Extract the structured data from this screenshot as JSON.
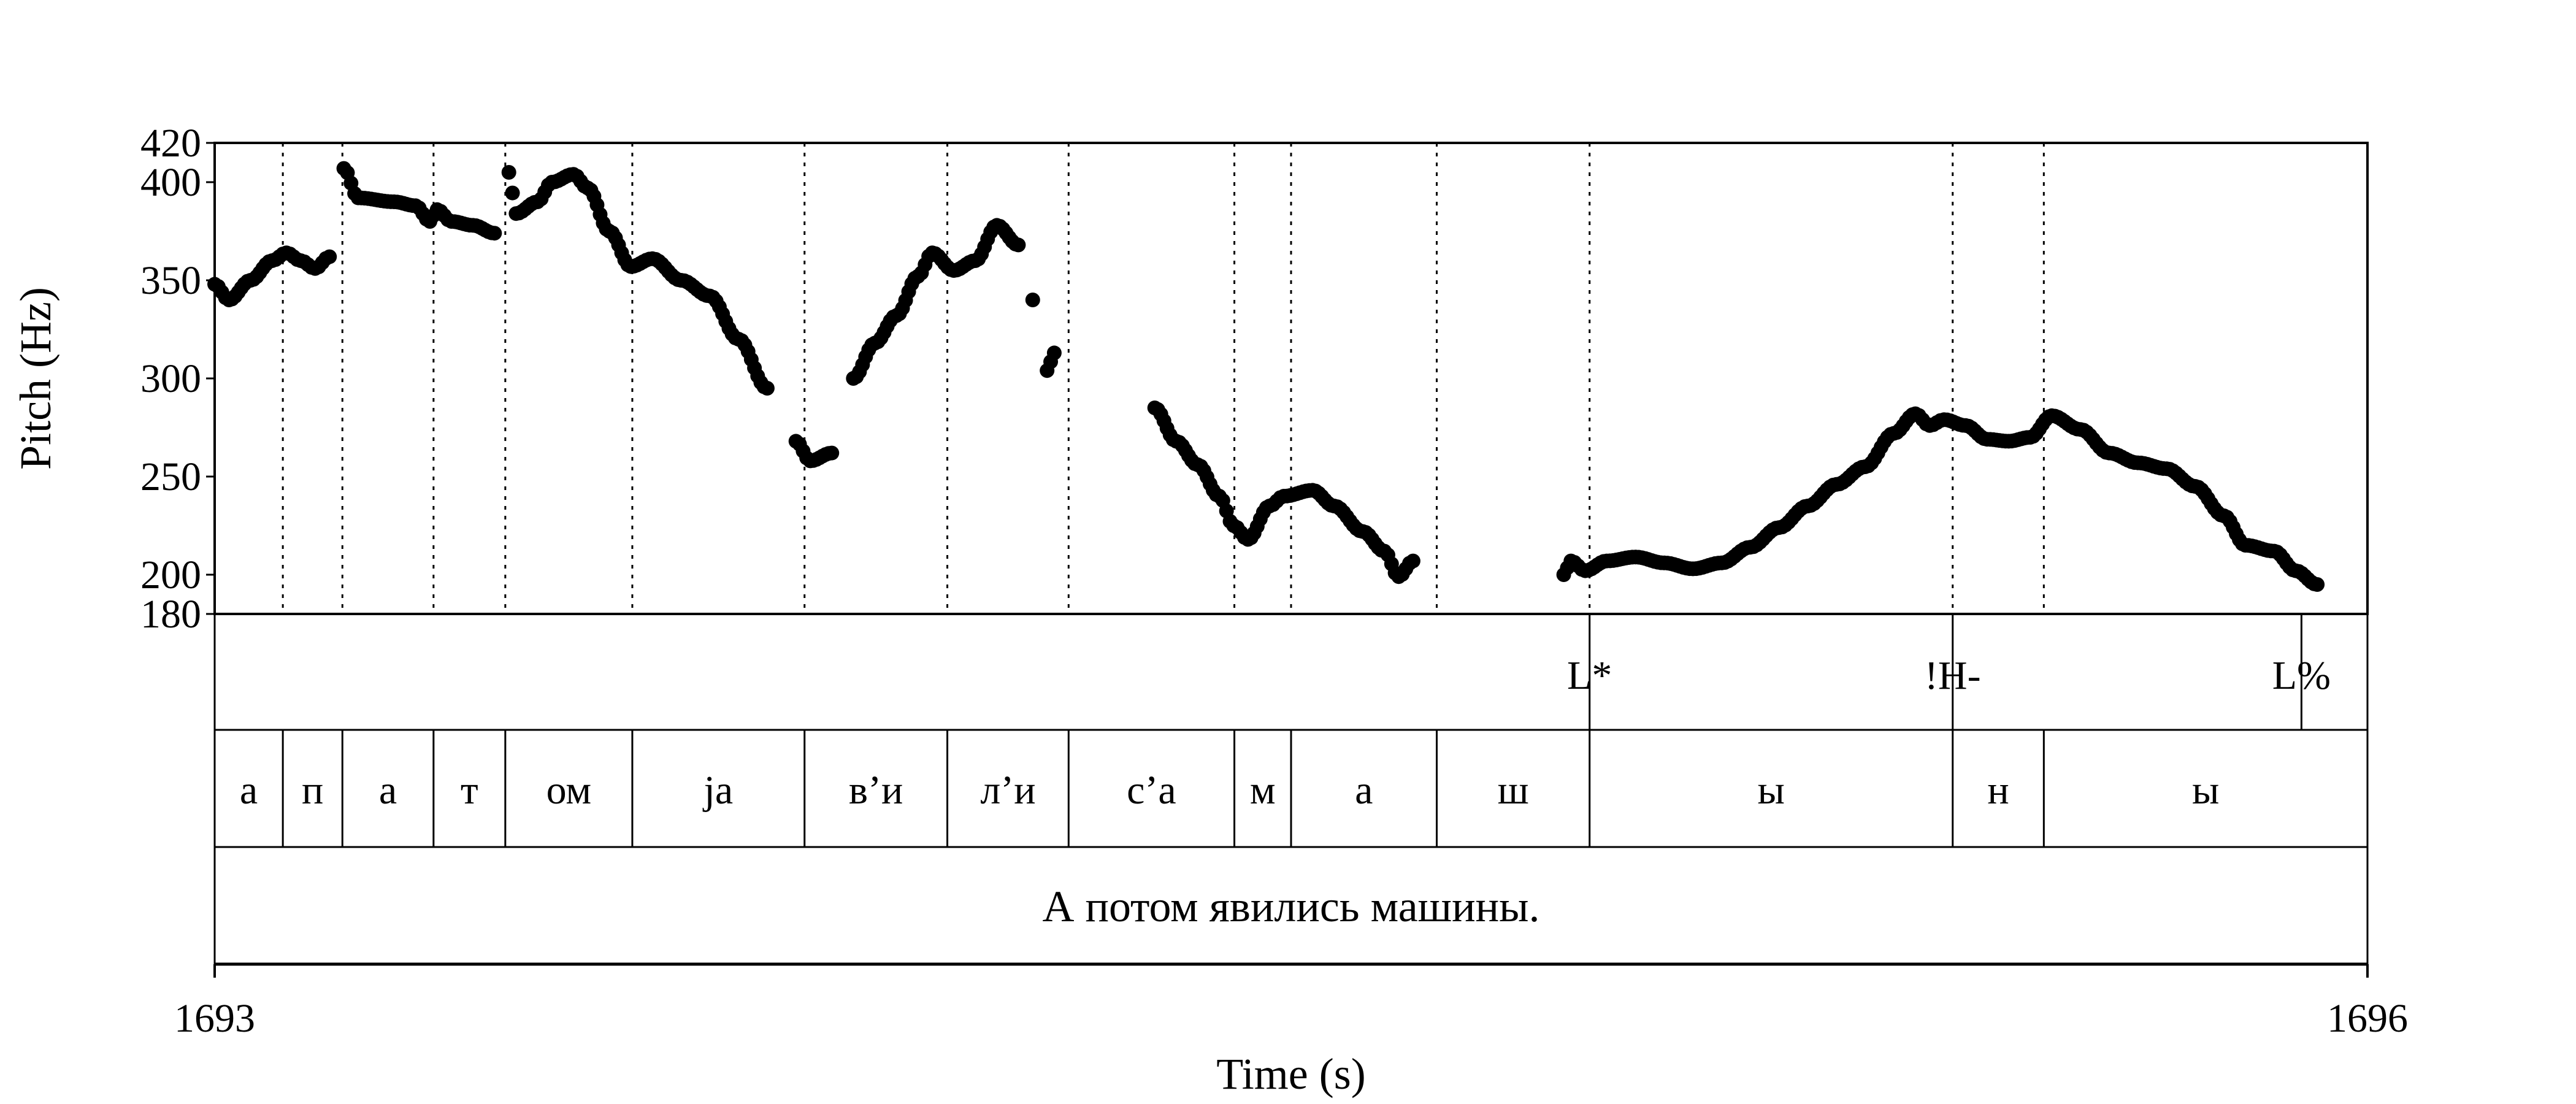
{
  "chart_data": {
    "type": "scatter",
    "title": "",
    "xlabel": "Time (s)",
    "ylabel": "Pitch (Hz)",
    "xlim": [
      1693,
      1696
    ],
    "ylim": [
      180,
      420
    ],
    "x_tick_labels": [
      "1693",
      "1696"
    ],
    "y_ticks": [
      180,
      200,
      250,
      300,
      350,
      400,
      420
    ],
    "y_tick_labels": [
      "180",
      "200",
      "250",
      "300",
      "350",
      "400",
      "420"
    ],
    "pitch_contour_keypoints": [
      {
        "t": 1693.0,
        "hz": 348
      },
      {
        "t": 1693.02,
        "hz": 340
      },
      {
        "t": 1693.05,
        "hz": 350
      },
      {
        "t": 1693.08,
        "hz": 360
      },
      {
        "t": 1693.1,
        "hz": 364
      },
      {
        "t": 1693.12,
        "hz": 360
      },
      {
        "t": 1693.14,
        "hz": 356
      },
      {
        "t": 1693.16,
        "hz": 362
      },
      {
        "t": 1693.18,
        "hz": 407
      },
      {
        "t": 1693.2,
        "hz": 392
      },
      {
        "t": 1693.25,
        "hz": 390
      },
      {
        "t": 1693.28,
        "hz": 388
      },
      {
        "t": 1693.3,
        "hz": 380
      },
      {
        "t": 1693.31,
        "hz": 386
      },
      {
        "t": 1693.33,
        "hz": 380
      },
      {
        "t": 1693.36,
        "hz": 378
      },
      {
        "t": 1693.39,
        "hz": 374
      },
      {
        "t": 1693.41,
        "hz": 405
      },
      {
        "t": 1693.42,
        "hz": 384
      },
      {
        "t": 1693.45,
        "hz": 390
      },
      {
        "t": 1693.47,
        "hz": 400
      },
      {
        "t": 1693.5,
        "hz": 404
      },
      {
        "t": 1693.52,
        "hz": 397
      },
      {
        "t": 1693.55,
        "hz": 375
      },
      {
        "t": 1693.58,
        "hz": 357
      },
      {
        "t": 1693.61,
        "hz": 361
      },
      {
        "t": 1693.65,
        "hz": 350
      },
      {
        "t": 1693.69,
        "hz": 342
      },
      {
        "t": 1693.73,
        "hz": 320
      },
      {
        "t": 1693.77,
        "hz": 295
      },
      {
        "t": 1693.81,
        "hz": 268
      },
      {
        "t": 1693.83,
        "hz": 258
      },
      {
        "t": 1693.86,
        "hz": 262
      },
      {
        "t": 1693.89,
        "hz": 300
      },
      {
        "t": 1693.92,
        "hz": 318
      },
      {
        "t": 1693.95,
        "hz": 332
      },
      {
        "t": 1693.98,
        "hz": 352
      },
      {
        "t": 1694.0,
        "hz": 364
      },
      {
        "t": 1694.03,
        "hz": 355
      },
      {
        "t": 1694.06,
        "hz": 360
      },
      {
        "t": 1694.09,
        "hz": 378
      },
      {
        "t": 1694.12,
        "hz": 368
      },
      {
        "t": 1694.14,
        "hz": 340
      },
      {
        "t": 1694.16,
        "hz": 304
      },
      {
        "t": 1694.17,
        "hz": 313
      },
      {
        "t": 1694.31,
        "hz": 285
      },
      {
        "t": 1694.34,
        "hz": 268
      },
      {
        "t": 1694.37,
        "hz": 256
      },
      {
        "t": 1694.4,
        "hz": 240
      },
      {
        "t": 1694.42,
        "hz": 225
      },
      {
        "t": 1694.44,
        "hz": 218
      },
      {
        "t": 1694.47,
        "hz": 235
      },
      {
        "t": 1694.49,
        "hz": 240
      },
      {
        "t": 1694.53,
        "hz": 243
      },
      {
        "t": 1694.56,
        "hz": 235
      },
      {
        "t": 1694.6,
        "hz": 222
      },
      {
        "t": 1694.63,
        "hz": 212
      },
      {
        "t": 1694.65,
        "hz": 199
      },
      {
        "t": 1694.67,
        "hz": 207
      },
      {
        "t": 1694.88,
        "hz": 200
      },
      {
        "t": 1694.89,
        "hz": 207
      },
      {
        "t": 1694.91,
        "hz": 202
      },
      {
        "t": 1694.94,
        "hz": 207
      },
      {
        "t": 1694.98,
        "hz": 209
      },
      {
        "t": 1695.02,
        "hz": 206
      },
      {
        "t": 1695.06,
        "hz": 203
      },
      {
        "t": 1695.1,
        "hz": 206
      },
      {
        "t": 1695.14,
        "hz": 214
      },
      {
        "t": 1695.18,
        "hz": 224
      },
      {
        "t": 1695.22,
        "hz": 235
      },
      {
        "t": 1695.26,
        "hz": 246
      },
      {
        "t": 1695.3,
        "hz": 255
      },
      {
        "t": 1695.34,
        "hz": 272
      },
      {
        "t": 1695.37,
        "hz": 282
      },
      {
        "t": 1695.39,
        "hz": 276
      },
      {
        "t": 1695.41,
        "hz": 279
      },
      {
        "t": 1695.44,
        "hz": 276
      },
      {
        "t": 1695.47,
        "hz": 269
      },
      {
        "t": 1695.5,
        "hz": 268
      },
      {
        "t": 1695.53,
        "hz": 270
      },
      {
        "t": 1695.56,
        "hz": 281
      },
      {
        "t": 1695.6,
        "hz": 274
      },
      {
        "t": 1695.64,
        "hz": 262
      },
      {
        "t": 1695.68,
        "hz": 257
      },
      {
        "t": 1695.72,
        "hz": 254
      },
      {
        "t": 1695.76,
        "hz": 245
      },
      {
        "t": 1695.8,
        "hz": 230
      },
      {
        "t": 1695.83,
        "hz": 215
      },
      {
        "t": 1695.87,
        "hz": 212
      },
      {
        "t": 1695.9,
        "hz": 202
      },
      {
        "t": 1695.93,
        "hz": 195
      }
    ],
    "segment_boundaries": [
      1693.095,
      1693.178,
      1693.305,
      1693.405,
      1693.582,
      1693.822,
      1694.021,
      1694.19,
      1694.421,
      1694.5,
      1694.703,
      1694.916,
      1695.422,
      1695.549
    ],
    "segments": [
      {
        "label": "а",
        "start": 1693.0,
        "end": 1693.095
      },
      {
        "label": "п",
        "start": 1693.095,
        "end": 1693.178
      },
      {
        "label": "а",
        "start": 1693.178,
        "end": 1693.305
      },
      {
        "label": "т",
        "start": 1693.305,
        "end": 1693.405
      },
      {
        "label": "ом",
        "start": 1693.405,
        "end": 1693.582
      },
      {
        "label": "jа",
        "start": 1693.582,
        "end": 1693.822
      },
      {
        "label": "в’и",
        "start": 1693.822,
        "end": 1694.021
      },
      {
        "label": "л’и",
        "start": 1694.021,
        "end": 1694.19
      },
      {
        "label": "с’а",
        "start": 1694.19,
        "end": 1694.421
      },
      {
        "label": "м",
        "start": 1694.421,
        "end": 1694.5
      },
      {
        "label": "а",
        "start": 1694.5,
        "end": 1694.703
      },
      {
        "label": "ш",
        "start": 1694.703,
        "end": 1694.916
      },
      {
        "label": "ы",
        "start": 1694.916,
        "end": 1695.422
      },
      {
        "label": "н",
        "start": 1695.422,
        "end": 1695.549
      },
      {
        "label": "ы",
        "start": 1695.549,
        "end": 1696.0
      }
    ],
    "tones": [
      {
        "label": "L*",
        "t": 1694.916
      },
      {
        "label": "!H-",
        "t": 1695.422
      },
      {
        "label": "L%",
        "t": 1695.908
      }
    ],
    "sentence": "А потом явились машины."
  }
}
